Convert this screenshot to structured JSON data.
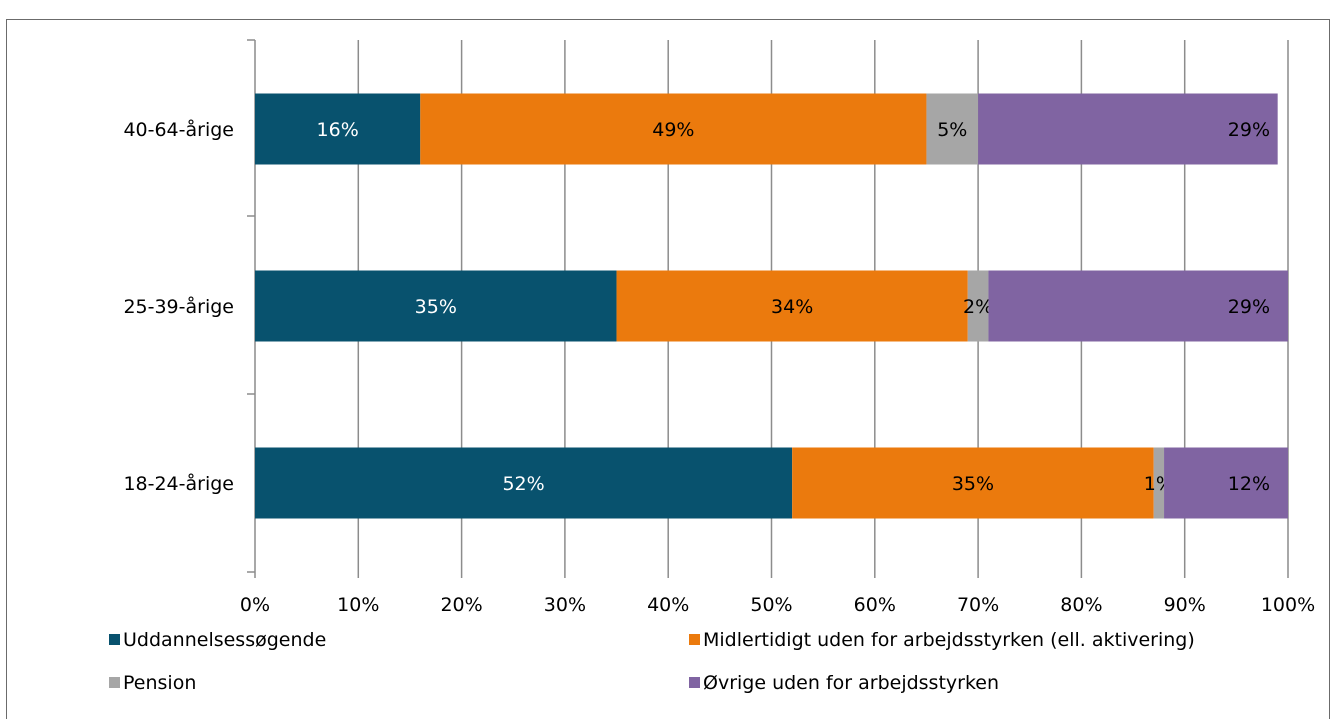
{
  "chart_data": {
    "type": "bar",
    "orientation": "horizontal",
    "stacked": true,
    "title": "",
    "xlabel": "",
    "ylabel": "",
    "xlim": [
      0,
      100
    ],
    "x_ticks": [
      "0%",
      "10%",
      "20%",
      "30%",
      "40%",
      "50%",
      "60%",
      "70%",
      "80%",
      "90%",
      "100%"
    ],
    "categories": [
      "40-64-årige",
      "25-39-årige",
      "18-24-årige"
    ],
    "series": [
      {
        "name": "Uddannelsessøgende",
        "color": "#08526e",
        "label_color": "#ffffff",
        "values": [
          16,
          35,
          52
        ],
        "labels": [
          "16%",
          "35%",
          "52%"
        ]
      },
      {
        "name": "Midlertidigt uden for arbejdsstyrken (ell. aktivering)",
        "color": "#eb7a0d",
        "label_color": "#000000",
        "values": [
          49,
          34,
          35
        ],
        "labels": [
          "49%",
          "34%",
          "35%"
        ]
      },
      {
        "name": "Pension",
        "color": "#a6a6a6",
        "label_color": "#000000",
        "values": [
          5,
          2,
          1
        ],
        "labels": [
          "5%",
          "2%",
          "1%"
        ]
      },
      {
        "name": "Øvrige uden for arbejdsstyrken",
        "color": "#8064a2",
        "label_color": "#000000",
        "values": [
          29,
          29,
          12
        ],
        "labels": [
          "29%",
          "29%",
          "12%"
        ]
      }
    ],
    "grid": true,
    "legend_position": "bottom"
  }
}
